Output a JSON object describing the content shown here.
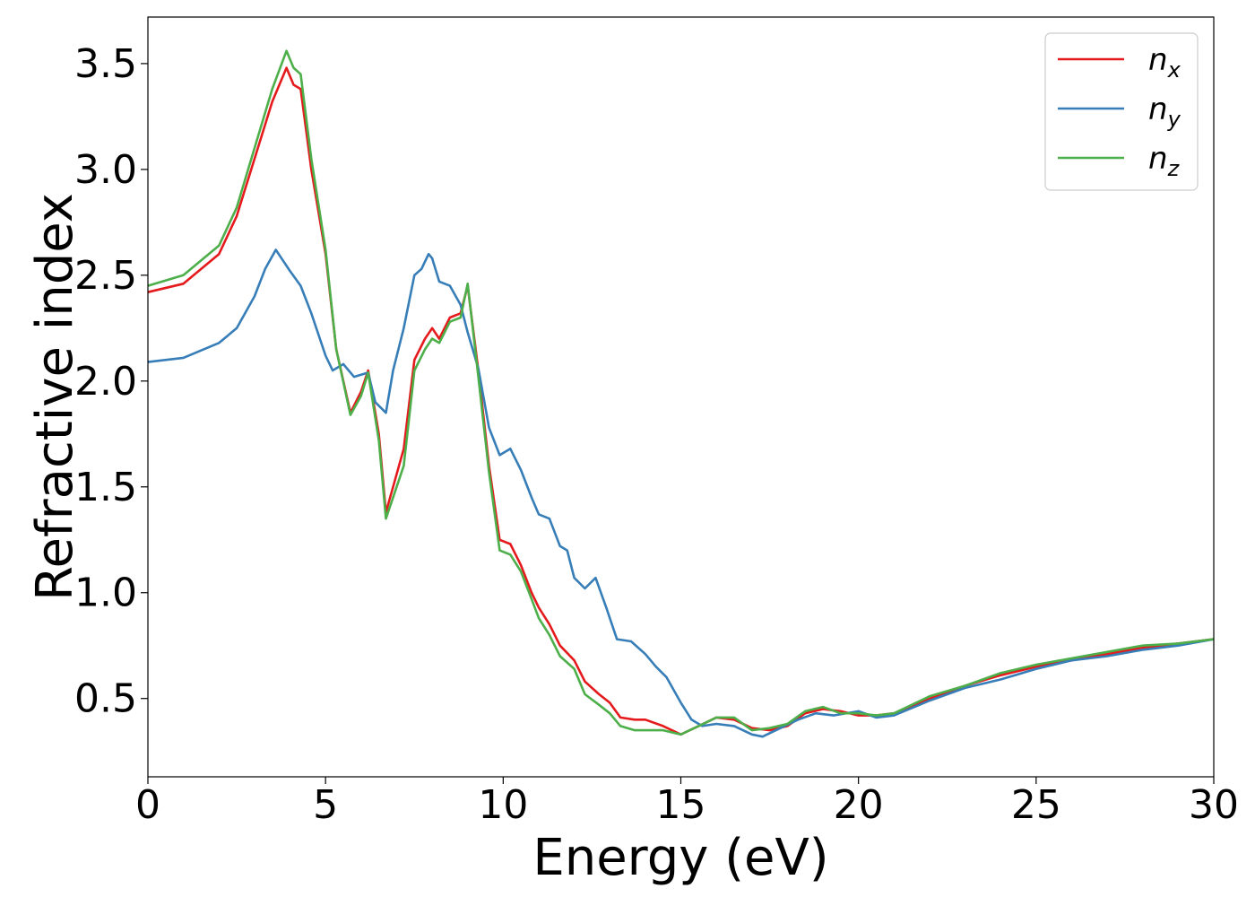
{
  "chart_data": {
    "type": "line",
    "title": "",
    "xlabel": "Energy (eV)",
    "ylabel": "Refractive index",
    "xlim": [
      0,
      30
    ],
    "ylim": [
      0.13,
      3.72
    ],
    "xticks": [
      0,
      5,
      10,
      15,
      20,
      25,
      30
    ],
    "yticks": [
      0.5,
      1.0,
      1.5,
      2.0,
      2.5,
      3.0,
      3.5
    ],
    "xtick_labels": [
      "0",
      "5",
      "10",
      "15",
      "20",
      "25",
      "30"
    ],
    "ytick_labels": [
      "0.5",
      "1.0",
      "1.5",
      "2.0",
      "2.5",
      "3.0",
      "3.5"
    ],
    "grid": false,
    "legend_position": "top-right",
    "series": [
      {
        "name": "n",
        "subscript": "x",
        "color": "#e41a1c",
        "x": [
          0,
          1,
          2,
          2.5,
          3,
          3.5,
          3.9,
          4.1,
          4.3,
          4.6,
          5.0,
          5.3,
          5.7,
          6.0,
          6.2,
          6.5,
          6.7,
          6.9,
          7.2,
          7.5,
          7.8,
          8.0,
          8.2,
          8.5,
          8.8,
          9.0,
          9.3,
          9.6,
          9.9,
          10.2,
          10.5,
          10.8,
          11.0,
          11.3,
          11.6,
          12.0,
          12.3,
          12.7,
          13.0,
          13.3,
          13.7,
          14.0,
          14.5,
          15.0,
          15.5,
          16.0,
          16.5,
          17.0,
          17.5,
          18.0,
          18.5,
          19.0,
          19.5,
          20.0,
          20.5,
          21.0,
          22.0,
          23.0,
          24.0,
          25.0,
          26.0,
          27.0,
          28.0,
          29.0,
          30.0
        ],
        "values": [
          2.42,
          2.46,
          2.6,
          2.78,
          3.05,
          3.32,
          3.48,
          3.4,
          3.38,
          3.0,
          2.6,
          2.15,
          1.85,
          1.95,
          2.05,
          1.75,
          1.38,
          1.5,
          1.68,
          2.1,
          2.2,
          2.25,
          2.2,
          2.3,
          2.32,
          2.45,
          2.05,
          1.6,
          1.25,
          1.23,
          1.13,
          1.0,
          0.93,
          0.85,
          0.75,
          0.68,
          0.58,
          0.52,
          0.48,
          0.41,
          0.4,
          0.4,
          0.37,
          0.33,
          0.37,
          0.41,
          0.4,
          0.36,
          0.35,
          0.37,
          0.43,
          0.45,
          0.44,
          0.42,
          0.42,
          0.43,
          0.5,
          0.56,
          0.61,
          0.65,
          0.68,
          0.71,
          0.74,
          0.76,
          0.78
        ]
      },
      {
        "name": "n",
        "subscript": "y",
        "color": "#377eb8",
        "x": [
          0,
          1,
          2,
          2.5,
          3,
          3.3,
          3.6,
          3.8,
          4.0,
          4.3,
          4.6,
          5.0,
          5.2,
          5.5,
          5.8,
          6.0,
          6.2,
          6.4,
          6.7,
          6.9,
          7.2,
          7.5,
          7.7,
          7.9,
          8.0,
          8.2,
          8.5,
          8.8,
          9.0,
          9.3,
          9.6,
          9.9,
          10.2,
          10.5,
          10.8,
          11.0,
          11.3,
          11.6,
          11.8,
          12.0,
          12.3,
          12.6,
          12.9,
          13.2,
          13.6,
          14.0,
          14.3,
          14.6,
          15.0,
          15.3,
          15.6,
          16.0,
          16.5,
          17.0,
          17.3,
          17.8,
          18.3,
          18.8,
          19.3,
          20.0,
          20.5,
          21.0,
          22.0,
          23.0,
          24.0,
          25.0,
          26.0,
          27.0,
          28.0,
          29.0,
          30.0
        ],
        "values": [
          2.09,
          2.11,
          2.18,
          2.25,
          2.4,
          2.53,
          2.62,
          2.57,
          2.52,
          2.45,
          2.32,
          2.12,
          2.05,
          2.08,
          2.02,
          2.03,
          2.04,
          1.9,
          1.85,
          2.05,
          2.25,
          2.5,
          2.53,
          2.6,
          2.58,
          2.47,
          2.45,
          2.36,
          2.23,
          2.06,
          1.78,
          1.65,
          1.68,
          1.58,
          1.45,
          1.37,
          1.35,
          1.22,
          1.2,
          1.07,
          1.02,
          1.07,
          0.93,
          0.78,
          0.77,
          0.71,
          0.65,
          0.6,
          0.48,
          0.4,
          0.37,
          0.38,
          0.37,
          0.33,
          0.32,
          0.36,
          0.4,
          0.43,
          0.42,
          0.44,
          0.41,
          0.42,
          0.49,
          0.55,
          0.59,
          0.64,
          0.68,
          0.7,
          0.73,
          0.75,
          0.78
        ]
      },
      {
        "name": "n",
        "subscript": "z",
        "color": "#4daf4a",
        "x": [
          0,
          1,
          2,
          2.5,
          3,
          3.5,
          3.9,
          4.1,
          4.3,
          4.6,
          5.0,
          5.3,
          5.7,
          6.0,
          6.2,
          6.5,
          6.7,
          6.9,
          7.2,
          7.5,
          7.8,
          8.0,
          8.2,
          8.5,
          8.8,
          9.0,
          9.3,
          9.6,
          9.9,
          10.2,
          10.5,
          10.8,
          11.0,
          11.3,
          11.6,
          12.0,
          12.3,
          12.7,
          13.0,
          13.3,
          13.7,
          14.0,
          14.5,
          15.0,
          15.5,
          16.0,
          16.5,
          17.0,
          17.5,
          18.0,
          18.5,
          19.0,
          19.5,
          20.0,
          20.5,
          21.0,
          22.0,
          23.0,
          24.0,
          25.0,
          26.0,
          27.0,
          28.0,
          29.0,
          30.0
        ],
        "values": [
          2.45,
          2.5,
          2.64,
          2.82,
          3.1,
          3.38,
          3.56,
          3.48,
          3.45,
          3.05,
          2.62,
          2.15,
          1.84,
          1.93,
          2.04,
          1.72,
          1.35,
          1.45,
          1.6,
          2.05,
          2.15,
          2.2,
          2.18,
          2.28,
          2.3,
          2.46,
          2.02,
          1.57,
          1.2,
          1.18,
          1.1,
          0.97,
          0.88,
          0.8,
          0.7,
          0.64,
          0.52,
          0.47,
          0.43,
          0.37,
          0.35,
          0.35,
          0.35,
          0.33,
          0.37,
          0.41,
          0.41,
          0.35,
          0.36,
          0.38,
          0.44,
          0.46,
          0.43,
          0.43,
          0.42,
          0.43,
          0.51,
          0.56,
          0.62,
          0.66,
          0.69,
          0.72,
          0.75,
          0.76,
          0.78
        ]
      }
    ]
  }
}
